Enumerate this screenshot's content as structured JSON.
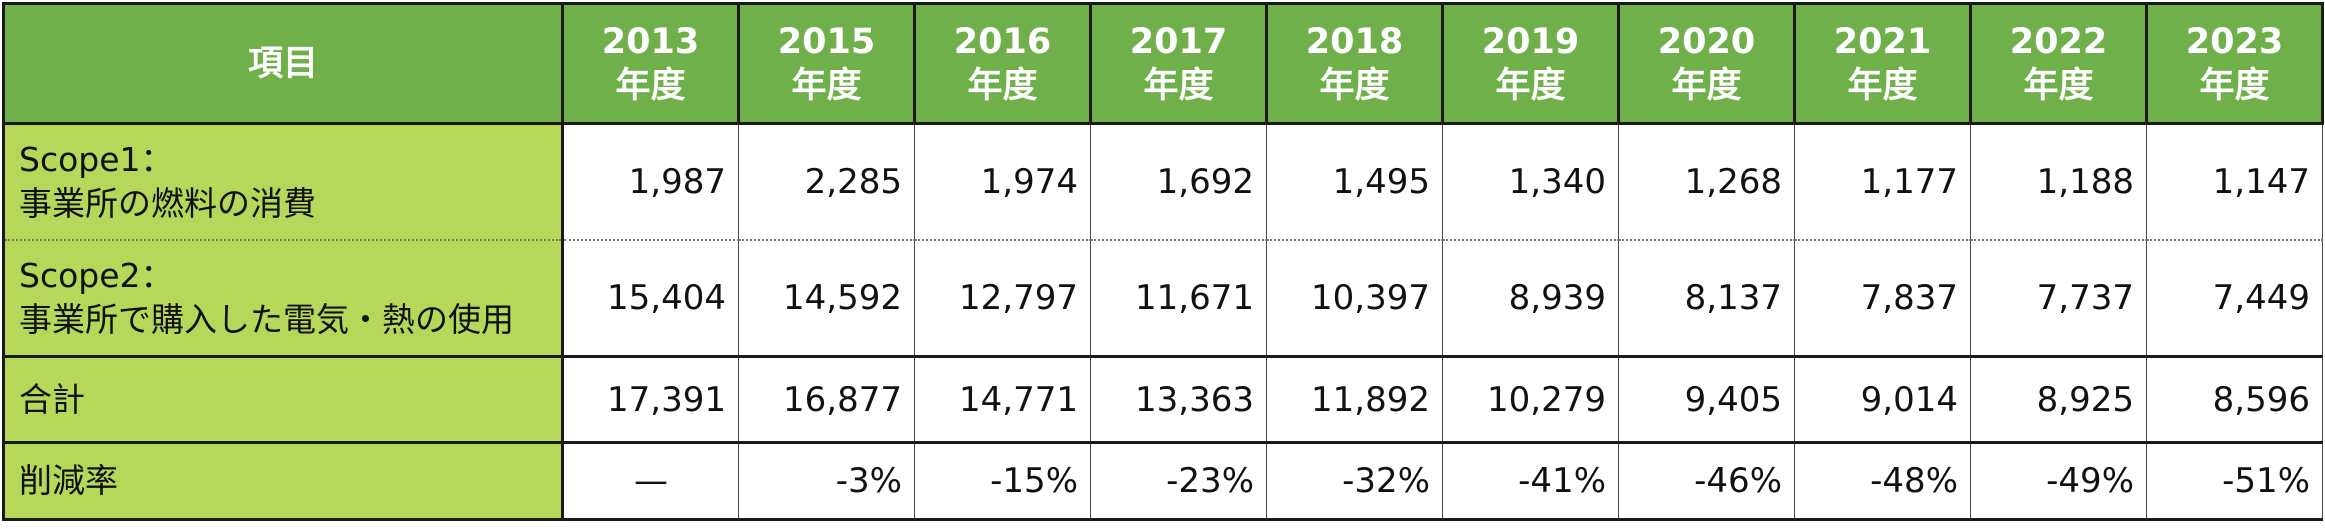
{
  "table": {
    "header": {
      "label": "項目",
      "columns": [
        {
          "year": "2013",
          "unit": "年度"
        },
        {
          "year": "2015",
          "unit": "年度"
        },
        {
          "year": "2016",
          "unit": "年度"
        },
        {
          "year": "2017",
          "unit": "年度"
        },
        {
          "year": "2018",
          "unit": "年度"
        },
        {
          "year": "2019",
          "unit": "年度"
        },
        {
          "year": "2020",
          "unit": "年度"
        },
        {
          "year": "2021",
          "unit": "年度"
        },
        {
          "year": "2022",
          "unit": "年度"
        },
        {
          "year": "2023",
          "unit": "年度"
        }
      ]
    },
    "rows": [
      {
        "label": [
          "Scope1：",
          "事業所の燃料の消費"
        ],
        "cells": [
          "1,987",
          "2,285",
          "1,974",
          "1,692",
          "1,495",
          "1,340",
          "1,268",
          "1,177",
          "1,188",
          "1,147"
        ]
      },
      {
        "label": [
          "Scope2：",
          "事業所で購入した電気・熱の使用"
        ],
        "cells": [
          "15,404",
          "14,592",
          "12,797",
          "11,671",
          "10,397",
          "8,939",
          "8,137",
          "7,837",
          "7,737",
          "7,449"
        ]
      },
      {
        "label": [
          "合計"
        ],
        "cells": [
          "17,391",
          "16,877",
          "14,771",
          "13,363",
          "11,892",
          "10,279",
          "9,405",
          "9,014",
          "8,925",
          "8,596"
        ]
      },
      {
        "label": [
          "削減率"
        ],
        "cells": [
          "—",
          "-3%",
          "-15%",
          "-23%",
          "-32%",
          "-41%",
          "-46%",
          "-48%",
          "-49%",
          "-51%"
        ]
      }
    ]
  }
}
